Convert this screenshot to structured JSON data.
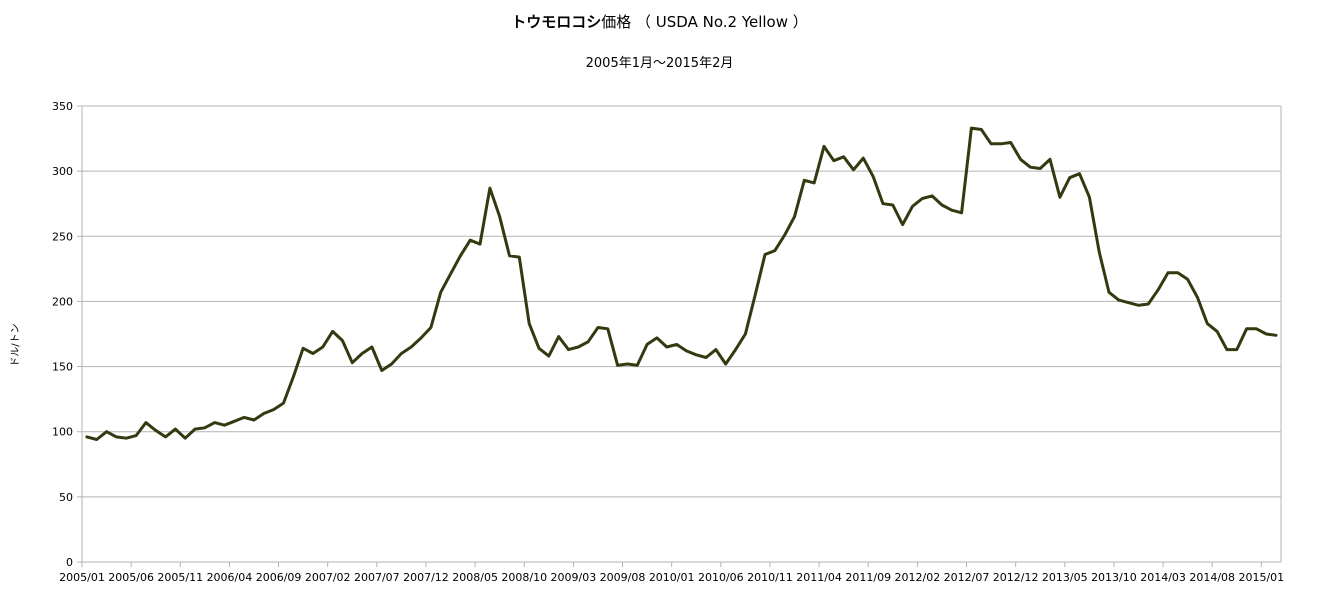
{
  "chart_data": {
    "type": "line",
    "title_bold": "トウモロコシ",
    "title_rest": "価格 （ USDA No.2 Yellow ）",
    "subtitle": "2005年1月〜2015年2月",
    "xlabel": "",
    "ylabel": "ドル/トン",
    "ylim": [
      0,
      350
    ],
    "y_ticks": [
      "0",
      "50",
      "100",
      "150",
      "200",
      "250",
      "300",
      "350"
    ],
    "grid": true,
    "legend": "none",
    "x_tick_labels": [
      "2005/01",
      "2005/06",
      "2005/11",
      "2006/04",
      "2006/09",
      "2007/02",
      "2007/07",
      "2007/12",
      "2008/05",
      "2008/10",
      "2009/03",
      "2009/08",
      "2010/01",
      "2010/06",
      "2010/11",
      "2011/04",
      "2011/09",
      "2012/02",
      "2012/07",
      "2012/12",
      "2013/05",
      "2013/10",
      "2014/03",
      "2014/08",
      "2015/01"
    ],
    "x_start": "2005/01",
    "x_end": "2015/02",
    "series": [
      {
        "color": "#333a0f",
        "values": [
          96,
          94,
          100,
          96,
          95,
          97,
          107,
          101,
          96,
          102,
          95,
          102,
          103,
          107,
          105,
          108,
          111,
          109,
          114,
          117,
          122,
          142,
          164,
          160,
          165,
          177,
          170,
          153,
          160,
          165,
          147,
          152,
          160,
          165,
          172,
          180,
          207,
          221,
          235,
          247,
          244,
          287,
          265,
          235,
          234,
          183,
          164,
          158,
          173,
          163,
          165,
          169,
          180,
          179,
          151,
          152,
          151,
          167,
          172,
          165,
          167,
          162,
          159,
          157,
          163,
          152,
          163,
          175,
          205,
          236,
          239,
          251,
          265,
          293,
          291,
          319,
          308,
          311,
          301,
          310,
          296,
          275,
          274,
          259,
          273,
          279,
          281,
          274,
          270,
          268,
          333,
          332,
          321,
          321,
          322,
          309,
          303,
          302,
          309,
          280,
          295,
          298,
          280,
          238,
          207,
          201,
          199,
          197,
          198,
          209,
          222,
          222,
          217,
          203,
          183,
          177,
          163,
          163,
          179,
          179,
          175,
          174
        ]
      }
    ]
  }
}
